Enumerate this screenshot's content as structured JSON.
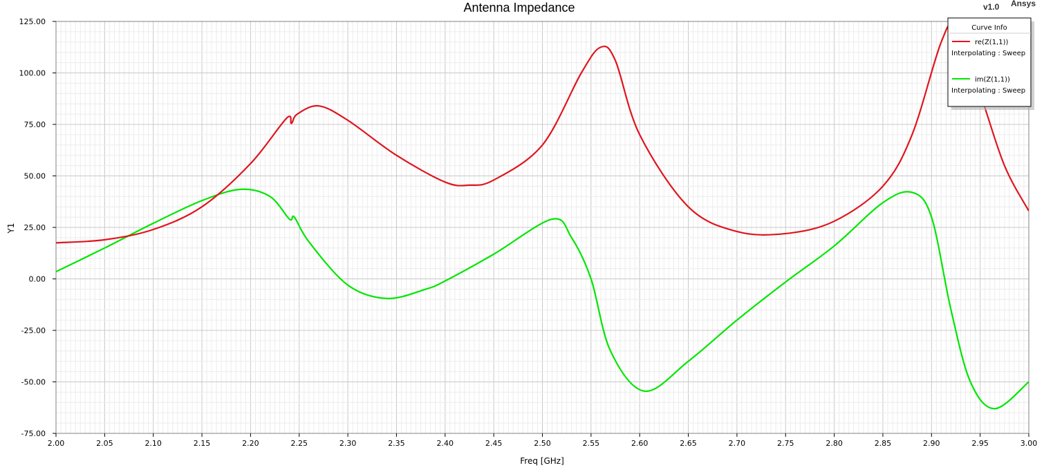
{
  "header": {
    "version": "v1.0",
    "brand": "Ansys"
  },
  "legend": {
    "title": "Curve Info",
    "entries": [
      {
        "name": "re(Z(1,1))",
        "detail": "Interpolating : Sweep",
        "color": "#e0141e"
      },
      {
        "name": "im(Z(1,1))",
        "detail": "Interpolating : Sweep",
        "color": "#00e600"
      }
    ]
  },
  "chart_data": {
    "type": "line",
    "title": "Antenna Impedance",
    "xlabel": "Freq [GHz]",
    "ylabel": "Y1",
    "xlim": [
      2.0,
      3.0
    ],
    "ylim": [
      -75,
      125
    ],
    "xticks": [
      "2.00",
      "2.05",
      "2.10",
      "2.15",
      "2.20",
      "2.25",
      "2.30",
      "2.35",
      "2.40",
      "2.45",
      "2.50",
      "2.55",
      "2.60",
      "2.65",
      "2.70",
      "2.75",
      "2.80",
      "2.85",
      "2.90",
      "2.95",
      "3.00"
    ],
    "yticks": [
      "125.00",
      "100.00",
      "75.00",
      "50.00",
      "25.00",
      "0.00",
      "-25.00",
      "-50.00",
      "-75.00"
    ],
    "grid": true,
    "legend_position": "top-right",
    "series": [
      {
        "name": "re(Z(1,1))",
        "color": "#e0141e",
        "x": [
          2.0,
          2.05,
          2.1,
          2.15,
          2.2,
          2.237,
          2.242,
          2.248,
          2.27,
          2.3,
          2.35,
          2.4,
          2.425,
          2.45,
          2.5,
          2.54,
          2.56,
          2.575,
          2.6,
          2.65,
          2.7,
          2.75,
          2.8,
          2.85,
          2.88,
          2.91,
          2.925,
          2.95,
          2.975,
          3.0
        ],
        "values": [
          17.5,
          19,
          24,
          35,
          56,
          78,
          75.5,
          80,
          84,
          77,
          60,
          47,
          45.5,
          48,
          65,
          100,
          112.5,
          106,
          70,
          35,
          23,
          22,
          28,
          45,
          70,
          115,
          122,
          90,
          55,
          33
        ]
      },
      {
        "name": "im(Z(1,1))",
        "color": "#00e600",
        "x": [
          2.0,
          2.05,
          2.1,
          2.15,
          2.19,
          2.22,
          2.24,
          2.245,
          2.26,
          2.3,
          2.34,
          2.38,
          2.4,
          2.45,
          2.51,
          2.53,
          2.55,
          2.57,
          2.605,
          2.65,
          2.7,
          2.75,
          2.8,
          2.85,
          2.88,
          2.9,
          2.92,
          2.94,
          2.965,
          3.0
        ],
        "values": [
          3.5,
          15,
          27,
          38,
          43.5,
          40,
          29,
          30,
          18,
          -3,
          -9.5,
          -5,
          -1,
          12,
          29,
          20,
          0,
          -35,
          -54.5,
          -40,
          -20,
          -1.5,
          16,
          37,
          42,
          30,
          -15,
          -50,
          -63,
          -50
        ]
      }
    ]
  }
}
